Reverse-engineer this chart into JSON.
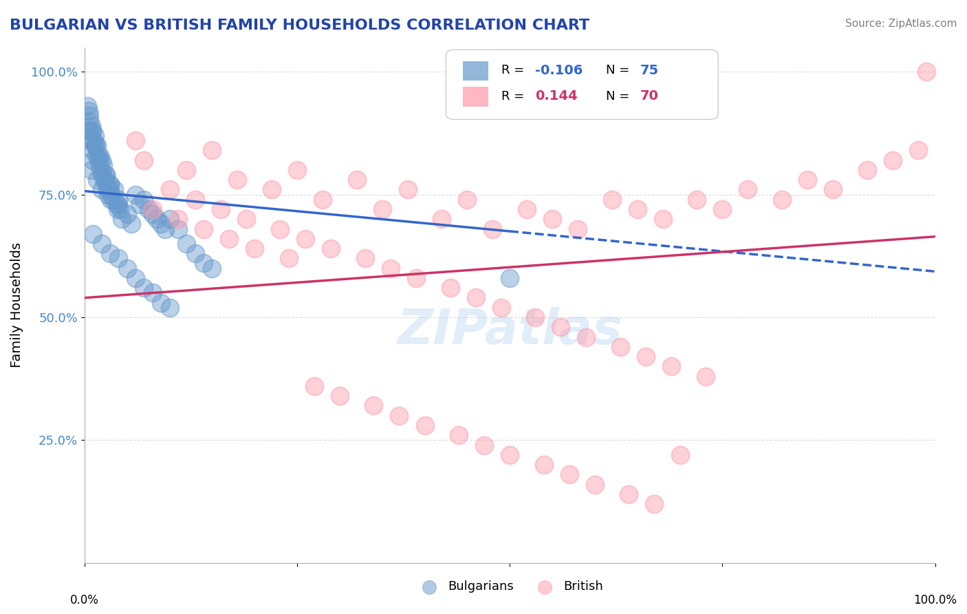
{
  "title": "BULGARIAN VS BRITISH FAMILY HOUSEHOLDS CORRELATION CHART",
  "source": "Source: ZipAtlas.com",
  "ylabel": "Family Households",
  "xlim": [
    0.0,
    1.0
  ],
  "ylim": [
    0.0,
    1.05
  ],
  "yticks": [
    0.25,
    0.5,
    0.75,
    1.0
  ],
  "ytick_labels": [
    "25.0%",
    "50.0%",
    "75.0%",
    "100.0%"
  ],
  "bulgarian_R": -0.106,
  "bulgarian_N": 75,
  "british_R": 0.144,
  "british_N": 70,
  "bulgarian_color": "#6699CC",
  "british_color": "#FF99AA",
  "bulgarian_line_color": "#3366CC",
  "british_line_color": "#CC3366",
  "bg_color": "#FFFFFF",
  "watermark": "ZIPatlas",
  "legend_bulgarians": "Bulgarians",
  "legend_british": "British",
  "bulgarian_scatter_x": [
    0.01,
    0.012,
    0.015,
    0.008,
    0.02,
    0.018,
    0.025,
    0.022,
    0.03,
    0.028,
    0.04,
    0.035,
    0.005,
    0.007,
    0.01,
    0.012,
    0.016,
    0.019,
    0.023,
    0.027,
    0.031,
    0.006,
    0.009,
    0.013,
    0.017,
    0.021,
    0.026,
    0.032,
    0.038,
    0.042,
    0.005,
    0.008,
    0.011,
    0.014,
    0.018,
    0.024,
    0.029,
    0.034,
    0.039,
    0.044,
    0.003,
    0.006,
    0.009,
    0.015,
    0.02,
    0.025,
    0.03,
    0.04,
    0.05,
    0.055,
    0.06,
    0.065,
    0.07,
    0.075,
    0.08,
    0.085,
    0.09,
    0.095,
    0.1,
    0.11,
    0.12,
    0.13,
    0.14,
    0.15,
    0.01,
    0.02,
    0.03,
    0.04,
    0.05,
    0.06,
    0.07,
    0.08,
    0.09,
    0.1,
    0.5
  ],
  "bulgarian_scatter_y": [
    0.82,
    0.85,
    0.78,
    0.8,
    0.76,
    0.83,
    0.79,
    0.81,
    0.77,
    0.75,
    0.74,
    0.76,
    0.88,
    0.86,
    0.84,
    0.87,
    0.83,
    0.8,
    0.78,
    0.76,
    0.74,
    0.9,
    0.88,
    0.85,
    0.82,
    0.79,
    0.77,
    0.75,
    0.73,
    0.72,
    0.92,
    0.89,
    0.86,
    0.83,
    0.81,
    0.78,
    0.76,
    0.74,
    0.72,
    0.7,
    0.93,
    0.91,
    0.88,
    0.85,
    0.82,
    0.79,
    0.77,
    0.73,
    0.71,
    0.69,
    0.75,
    0.73,
    0.74,
    0.72,
    0.71,
    0.7,
    0.69,
    0.68,
    0.7,
    0.68,
    0.65,
    0.63,
    0.61,
    0.6,
    0.67,
    0.65,
    0.63,
    0.62,
    0.6,
    0.58,
    0.56,
    0.55,
    0.53,
    0.52,
    0.58
  ],
  "british_scatter_x": [
    0.07,
    0.06,
    0.12,
    0.15,
    0.18,
    0.22,
    0.25,
    0.28,
    0.32,
    0.35,
    0.38,
    0.42,
    0.45,
    0.48,
    0.52,
    0.55,
    0.58,
    0.62,
    0.65,
    0.68,
    0.72,
    0.75,
    0.78,
    0.82,
    0.85,
    0.88,
    0.92,
    0.95,
    0.98,
    0.99,
    0.1,
    0.13,
    0.16,
    0.19,
    0.23,
    0.26,
    0.29,
    0.33,
    0.36,
    0.39,
    0.43,
    0.46,
    0.49,
    0.53,
    0.56,
    0.59,
    0.63,
    0.66,
    0.69,
    0.73,
    0.08,
    0.11,
    0.14,
    0.17,
    0.2,
    0.24,
    0.27,
    0.3,
    0.34,
    0.37,
    0.4,
    0.44,
    0.47,
    0.5,
    0.54,
    0.57,
    0.6,
    0.64,
    0.67,
    0.7
  ],
  "british_scatter_y": [
    0.82,
    0.86,
    0.8,
    0.84,
    0.78,
    0.76,
    0.8,
    0.74,
    0.78,
    0.72,
    0.76,
    0.7,
    0.74,
    0.68,
    0.72,
    0.7,
    0.68,
    0.74,
    0.72,
    0.7,
    0.74,
    0.72,
    0.76,
    0.74,
    0.78,
    0.76,
    0.8,
    0.82,
    0.84,
    1.0,
    0.76,
    0.74,
    0.72,
    0.7,
    0.68,
    0.66,
    0.64,
    0.62,
    0.6,
    0.58,
    0.56,
    0.54,
    0.52,
    0.5,
    0.48,
    0.46,
    0.44,
    0.42,
    0.4,
    0.38,
    0.72,
    0.7,
    0.68,
    0.66,
    0.64,
    0.62,
    0.36,
    0.34,
    0.32,
    0.3,
    0.28,
    0.26,
    0.24,
    0.22,
    0.2,
    0.18,
    0.16,
    0.14,
    0.12,
    0.22
  ]
}
